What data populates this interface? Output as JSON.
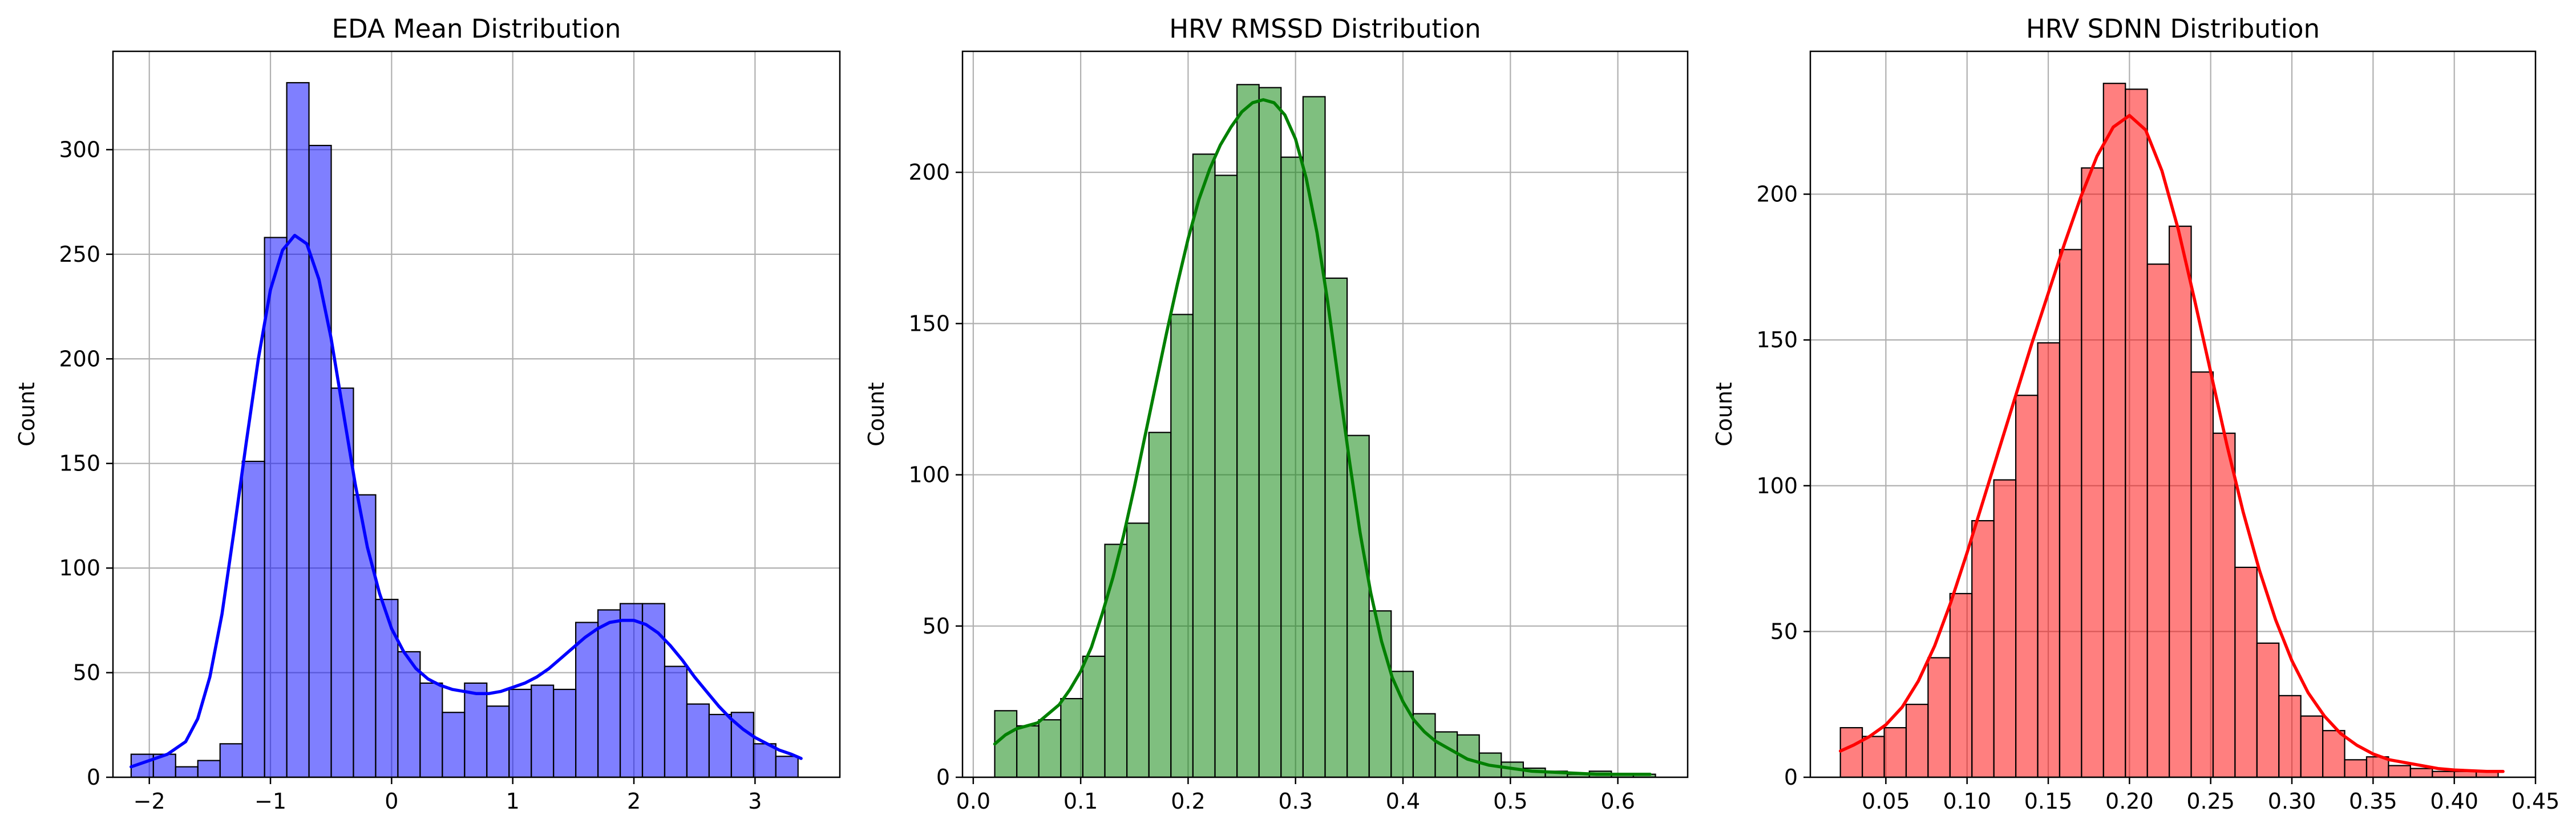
{
  "chart_data": [
    {
      "type": "histogram",
      "title": "EDA Mean Distribution",
      "xlabel": "",
      "ylabel": "Count",
      "color": "#0000ff",
      "fill_opacity": 0.5,
      "grid": true,
      "kde": true,
      "xlim": [
        -2.3,
        3.7
      ],
      "ylim": [
        0,
        347
      ],
      "xticks": [
        -2,
        -1,
        0,
        1,
        2,
        3
      ],
      "yticks": [
        0,
        50,
        100,
        150,
        200,
        250,
        300
      ],
      "bin_start": -2.15,
      "bin_width": 0.1835,
      "counts": [
        11,
        11,
        5,
        8,
        16,
        151,
        258,
        332,
        302,
        186,
        135,
        85,
        60,
        45,
        31,
        45,
        34,
        42,
        44,
        42,
        74,
        80,
        83,
        83,
        53,
        35,
        30,
        31,
        16,
        10
      ],
      "kde_curve": [
        [
          -2.15,
          5
        ],
        [
          -2.0,
          8
        ],
        [
          -1.85,
          11
        ],
        [
          -1.7,
          17
        ],
        [
          -1.6,
          28
        ],
        [
          -1.5,
          48
        ],
        [
          -1.4,
          78
        ],
        [
          -1.3,
          118
        ],
        [
          -1.2,
          160
        ],
        [
          -1.1,
          200
        ],
        [
          -1.0,
          233
        ],
        [
          -0.9,
          252
        ],
        [
          -0.8,
          259
        ],
        [
          -0.7,
          255
        ],
        [
          -0.6,
          238
        ],
        [
          -0.5,
          210
        ],
        [
          -0.4,
          175
        ],
        [
          -0.3,
          140
        ],
        [
          -0.2,
          110
        ],
        [
          -0.1,
          88
        ],
        [
          0.0,
          71
        ],
        [
          0.1,
          60
        ],
        [
          0.2,
          52
        ],
        [
          0.3,
          47
        ],
        [
          0.4,
          44
        ],
        [
          0.5,
          42
        ],
        [
          0.6,
          41
        ],
        [
          0.7,
          40
        ],
        [
          0.8,
          40
        ],
        [
          0.9,
          41
        ],
        [
          1.0,
          43
        ],
        [
          1.1,
          45
        ],
        [
          1.2,
          48
        ],
        [
          1.3,
          52
        ],
        [
          1.4,
          57
        ],
        [
          1.5,
          62
        ],
        [
          1.6,
          67
        ],
        [
          1.7,
          71
        ],
        [
          1.8,
          74
        ],
        [
          1.9,
          75
        ],
        [
          2.0,
          75
        ],
        [
          2.1,
          73
        ],
        [
          2.2,
          69
        ],
        [
          2.3,
          63
        ],
        [
          2.4,
          56
        ],
        [
          2.5,
          48
        ],
        [
          2.6,
          41
        ],
        [
          2.7,
          34
        ],
        [
          2.8,
          28
        ],
        [
          2.9,
          23
        ],
        [
          3.0,
          19
        ],
        [
          3.1,
          16
        ],
        [
          3.2,
          13
        ],
        [
          3.3,
          11
        ],
        [
          3.38,
          9
        ]
      ]
    },
    {
      "type": "histogram",
      "title": "HRV RMSSD Distribution",
      "xlabel": "",
      "ylabel": "Count",
      "color": "#008000",
      "fill_opacity": 0.5,
      "grid": true,
      "kde": true,
      "xlim": [
        -0.01,
        0.665
      ],
      "ylim": [
        0,
        240
      ],
      "xticks": [
        0.0,
        0.1,
        0.2,
        0.3,
        0.4,
        0.5,
        0.6
      ],
      "yticks": [
        0,
        50,
        100,
        150,
        200
      ],
      "bin_start": 0.02,
      "bin_width": 0.0205,
      "counts": [
        22,
        17,
        19,
        26,
        40,
        77,
        84,
        114,
        153,
        206,
        199,
        229,
        228,
        205,
        225,
        165,
        113,
        55,
        35,
        21,
        15,
        14,
        8,
        5,
        3,
        2,
        1,
        2,
        1,
        1
      ],
      "kde_curve": [
        [
          0.02,
          11
        ],
        [
          0.03,
          14
        ],
        [
          0.04,
          16
        ],
        [
          0.05,
          17
        ],
        [
          0.06,
          18
        ],
        [
          0.07,
          21
        ],
        [
          0.08,
          24
        ],
        [
          0.09,
          29
        ],
        [
          0.1,
          35
        ],
        [
          0.11,
          43
        ],
        [
          0.12,
          54
        ],
        [
          0.13,
          66
        ],
        [
          0.14,
          80
        ],
        [
          0.15,
          96
        ],
        [
          0.16,
          113
        ],
        [
          0.17,
          130
        ],
        [
          0.18,
          147
        ],
        [
          0.19,
          163
        ],
        [
          0.2,
          178
        ],
        [
          0.21,
          191
        ],
        [
          0.22,
          201
        ],
        [
          0.23,
          209
        ],
        [
          0.24,
          215
        ],
        [
          0.25,
          220
        ],
        [
          0.26,
          223
        ],
        [
          0.27,
          224
        ],
        [
          0.28,
          223
        ],
        [
          0.29,
          219
        ],
        [
          0.3,
          211
        ],
        [
          0.31,
          198
        ],
        [
          0.32,
          180
        ],
        [
          0.33,
          157
        ],
        [
          0.34,
          131
        ],
        [
          0.35,
          105
        ],
        [
          0.36,
          81
        ],
        [
          0.37,
          61
        ],
        [
          0.38,
          45
        ],
        [
          0.39,
          33
        ],
        [
          0.4,
          25
        ],
        [
          0.41,
          19
        ],
        [
          0.42,
          15
        ],
        [
          0.43,
          12
        ],
        [
          0.44,
          10
        ],
        [
          0.45,
          8
        ],
        [
          0.46,
          6
        ],
        [
          0.47,
          5
        ],
        [
          0.48,
          4
        ],
        [
          0.5,
          3
        ],
        [
          0.52,
          2
        ],
        [
          0.55,
          1.5
        ],
        [
          0.58,
          1
        ],
        [
          0.63,
          1
        ]
      ]
    },
    {
      "type": "histogram",
      "title": "HRV SDNN Distribution",
      "xlabel": "",
      "ylabel": "Count",
      "color": "#ff0000",
      "fill_opacity": 0.5,
      "grid": true,
      "kde": true,
      "xlim": [
        0.0035,
        0.45
      ],
      "ylim": [
        0,
        249
      ],
      "xticks": [
        0.05,
        0.1,
        0.15,
        0.2,
        0.25,
        0.3,
        0.35,
        0.4,
        0.45
      ],
      "yticks": [
        0,
        50,
        100,
        150,
        200
      ],
      "bin_start": 0.022,
      "bin_width": 0.0135,
      "counts": [
        17,
        14,
        17,
        25,
        41,
        63,
        88,
        102,
        131,
        149,
        181,
        209,
        238,
        236,
        176,
        189,
        139,
        118,
        72,
        46,
        28,
        21,
        16,
        6,
        7,
        4,
        3,
        2,
        2,
        2
      ],
      "kde_curve": [
        [
          0.022,
          9
        ],
        [
          0.03,
          11
        ],
        [
          0.04,
          14
        ],
        [
          0.05,
          18
        ],
        [
          0.06,
          24
        ],
        [
          0.07,
          33
        ],
        [
          0.08,
          45
        ],
        [
          0.09,
          60
        ],
        [
          0.1,
          77
        ],
        [
          0.11,
          95
        ],
        [
          0.12,
          113
        ],
        [
          0.13,
          131
        ],
        [
          0.14,
          149
        ],
        [
          0.15,
          166
        ],
        [
          0.16,
          183
        ],
        [
          0.17,
          199
        ],
        [
          0.18,
          213
        ],
        [
          0.19,
          223
        ],
        [
          0.2,
          227
        ],
        [
          0.21,
          222
        ],
        [
          0.22,
          208
        ],
        [
          0.23,
          188
        ],
        [
          0.24,
          164
        ],
        [
          0.25,
          139
        ],
        [
          0.26,
          114
        ],
        [
          0.27,
          91
        ],
        [
          0.28,
          71
        ],
        [
          0.29,
          54
        ],
        [
          0.3,
          40
        ],
        [
          0.31,
          29
        ],
        [
          0.32,
          21
        ],
        [
          0.33,
          15
        ],
        [
          0.34,
          11
        ],
        [
          0.35,
          8
        ],
        [
          0.36,
          6
        ],
        [
          0.37,
          5
        ],
        [
          0.38,
          4
        ],
        [
          0.39,
          3
        ],
        [
          0.4,
          2.5
        ],
        [
          0.42,
          2
        ],
        [
          0.43,
          2
        ]
      ]
    }
  ]
}
